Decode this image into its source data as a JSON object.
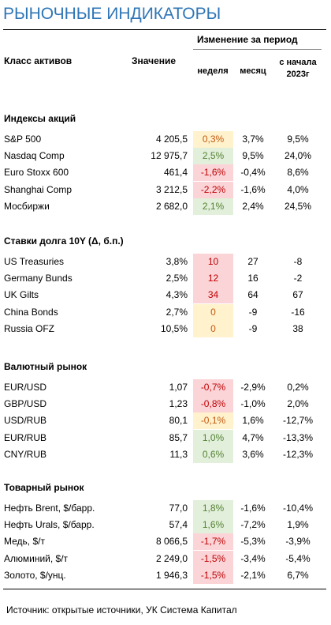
{
  "header": {
    "title": "РЫНОЧНЫЕ ИНДИКАТОРЫ",
    "col_asset": "Класс активов",
    "col_value": "Значение",
    "col_change": "Изменение за период",
    "col_week": "неделя",
    "col_month": "месяц",
    "col_ytd": "с начала 2023г"
  },
  "sections": [
    {
      "title": "Индексы акций",
      "rows": [
        {
          "cells": [
            "S&P 500",
            "4 205,5",
            "0,3%",
            "3,7%",
            "9,5%"
          ],
          "tone": "yellow"
        },
        {
          "cells": [
            "Nasdaq Comp",
            "12 975,7",
            "2,5%",
            "9,5%",
            "24,0%"
          ],
          "tone": "green"
        },
        {
          "cells": [
            "Euro Stoxx 600",
            "461,4",
            "-1,6%",
            "-0,4%",
            "8,6%"
          ],
          "tone": "red"
        },
        {
          "cells": [
            "Shanghai Comp",
            "3 212,5",
            "-2,2%",
            "-1,6%",
            "4,0%"
          ],
          "tone": "red"
        },
        {
          "cells": [
            "Мосбиржи",
            "2 682,0",
            "2,1%",
            "2,4%",
            "24,5%"
          ],
          "tone": "green"
        }
      ]
    },
    {
      "title": "Ставки долга 10Y (Δ, б.п.)",
      "rows": [
        {
          "cells": [
            "US Treasuries",
            "3,8%",
            "10",
            "27",
            "-8"
          ],
          "tone": "red"
        },
        {
          "cells": [
            "Germany Bunds",
            "2,5%",
            "12",
            "16",
            "-2"
          ],
          "tone": "red"
        },
        {
          "cells": [
            "UK Gilts",
            "4,3%",
            "34",
            "64",
            "67"
          ],
          "tone": "red"
        },
        {
          "cells": [
            "China Bonds",
            "2,7%",
            "0",
            "-9",
            "-16"
          ],
          "tone": "yellow"
        },
        {
          "cells": [
            "Russia OFZ",
            "10,5%",
            "0",
            "-9",
            "38"
          ],
          "tone": "yellow"
        }
      ]
    },
    {
      "title": "Валютный рынок",
      "rows": [
        {
          "cells": [
            "EUR/USD",
            "1,07",
            "-0,7%",
            "-2,9%",
            "0,2%"
          ],
          "tone": "red"
        },
        {
          "cells": [
            "GBP/USD",
            "1,23",
            "-0,8%",
            "-1,0%",
            "2,0%"
          ],
          "tone": "red"
        },
        {
          "cells": [
            "USD/RUB",
            "80,1",
            "-0,1%",
            "1,6%",
            "-12,7%"
          ],
          "tone": "yellow"
        },
        {
          "cells": [
            "EUR/RUB",
            "85,7",
            "1,0%",
            "4,7%",
            "-13,3%"
          ],
          "tone": "green"
        },
        {
          "cells": [
            "CNY/RUB",
            "11,3",
            "0,6%",
            "3,6%",
            "-12,3%"
          ],
          "tone": "green"
        }
      ]
    },
    {
      "title": "Товарный рынок",
      "rows": [
        {
          "cells": [
            "Нефть Brent, $/барр.",
            "77,0",
            "1,8%",
            "-1,6%",
            "-10,4%"
          ],
          "tone": "green"
        },
        {
          "cells": [
            "Нефть Urals, $/барр.",
            "57,4",
            "1,6%",
            "-7,2%",
            "1,9%"
          ],
          "tone": "green"
        },
        {
          "cells": [
            "Медь, $/т",
            "8 066,5",
            "-1,7%",
            "-5,3%",
            "-3,9%"
          ],
          "tone": "red"
        },
        {
          "cells": [
            "Алюминий, $/т",
            "2 249,0",
            "-1,5%",
            "-3,4%",
            "-5,4%"
          ],
          "tone": "red"
        },
        {
          "cells": [
            "Золото, $/унц.",
            "1 946,3",
            "-1,5%",
            "-2,1%",
            "6,7%"
          ],
          "tone": "red"
        }
      ]
    }
  ],
  "footer": {
    "source": "Источник: открытые источники, УК Система Капитал"
  }
}
